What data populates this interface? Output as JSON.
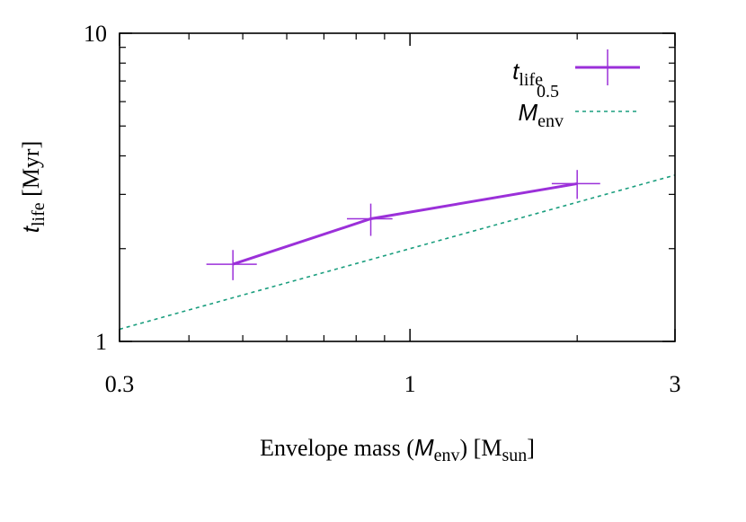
{
  "chart_data": {
    "type": "line",
    "scale": {
      "x": "log",
      "y": "log"
    },
    "xlim": [
      0.3,
      3
    ],
    "ylim": [
      1,
      10
    ],
    "x_ticks": [
      {
        "value": 0.3,
        "label": "0.3"
      },
      {
        "value": 1,
        "label": "1"
      },
      {
        "value": 3,
        "label": "3"
      }
    ],
    "y_ticks": [
      {
        "value": 1,
        "label": "1"
      },
      {
        "value": 10,
        "label": "10"
      }
    ],
    "xlabel": {
      "prefix": "Envelope mass (",
      "var": "M",
      "var_sub": "env",
      "middle": ") [M",
      "unit_sub": "sun",
      "suffix": "]"
    },
    "ylabel": {
      "var": "t",
      "var_sub": "life",
      "suffix": " [Myr]"
    },
    "series": [
      {
        "name": "t_life",
        "legend_var": "t",
        "legend_sub": "life",
        "style": "line-with-error-crosses",
        "color": "#9b30d9",
        "points": [
          {
            "x": 0.48,
            "y": 1.78,
            "x_err": 0.05,
            "y_err": 0.2
          },
          {
            "x": 0.85,
            "y": 2.5,
            "x_err": 0.08,
            "y_err": 0.3
          },
          {
            "x": 2.0,
            "y": 3.25,
            "x_err": 0.2,
            "y_err": 0.35
          }
        ]
      },
      {
        "name": "M_env^0.5",
        "legend_var": "M",
        "legend_sub": "env",
        "legend_sup": "0.5",
        "style": "dashed",
        "color": "#1a9e7e",
        "function": "power",
        "coefficient": 2.0,
        "exponent": 0.5
      }
    ],
    "legend_position": "top-right"
  }
}
